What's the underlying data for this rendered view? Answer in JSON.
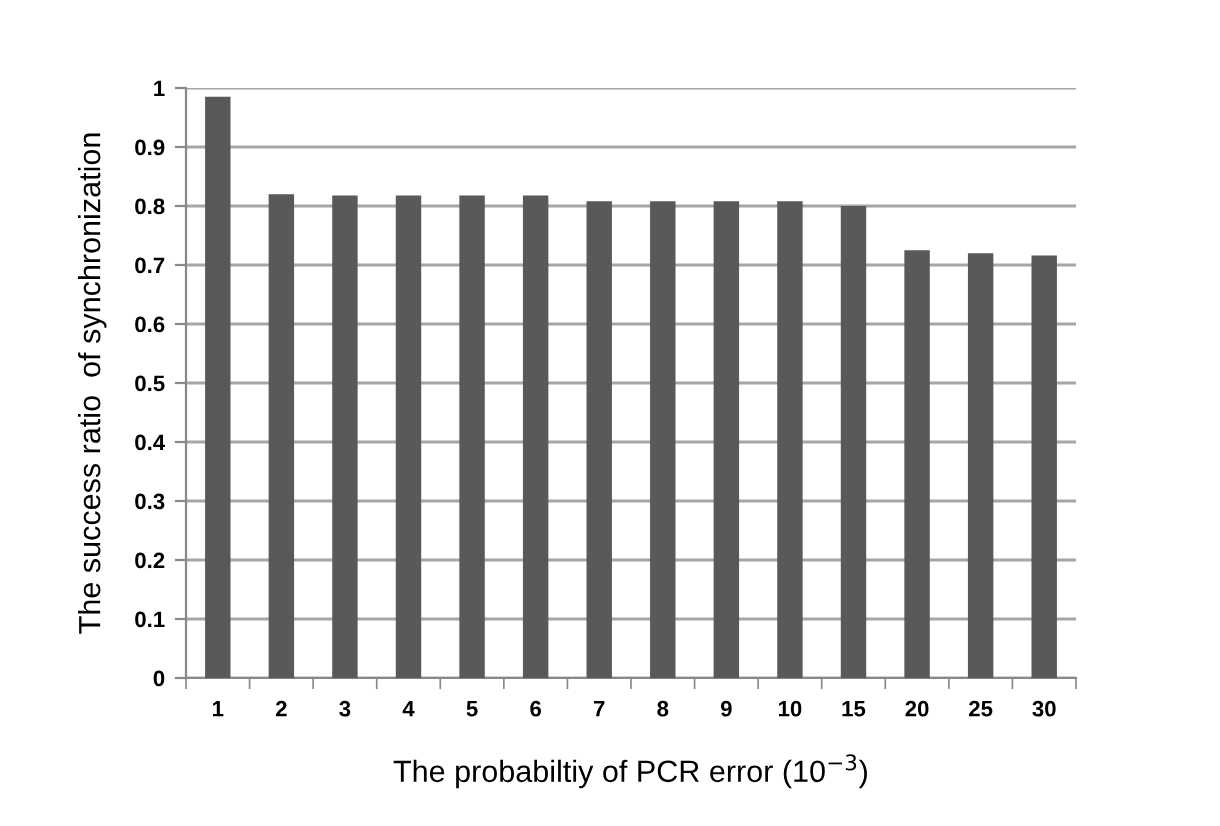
{
  "chart_data": {
    "type": "bar",
    "xlabel": "The probabiltiy of PCR error (10$^{−3}$)",
    "ylabel": "The success ratio  of synchronization",
    "categories": [
      "1",
      "2",
      "3",
      "4",
      "5",
      "6",
      "7",
      "8",
      "9",
      "10",
      "15",
      "20",
      "25",
      "30"
    ],
    "values": [
      0.985,
      0.82,
      0.818,
      0.818,
      0.818,
      0.818,
      0.808,
      0.808,
      0.808,
      0.808,
      0.8,
      0.725,
      0.72,
      0.716
    ],
    "color": "#595959",
    "ylim": [
      0,
      1
    ],
    "yticks": [
      0,
      0.1,
      0.2,
      0.3,
      0.4,
      0.5,
      0.6,
      0.7,
      0.8,
      0.9,
      1
    ],
    "grid": "y",
    "legend": false
  }
}
